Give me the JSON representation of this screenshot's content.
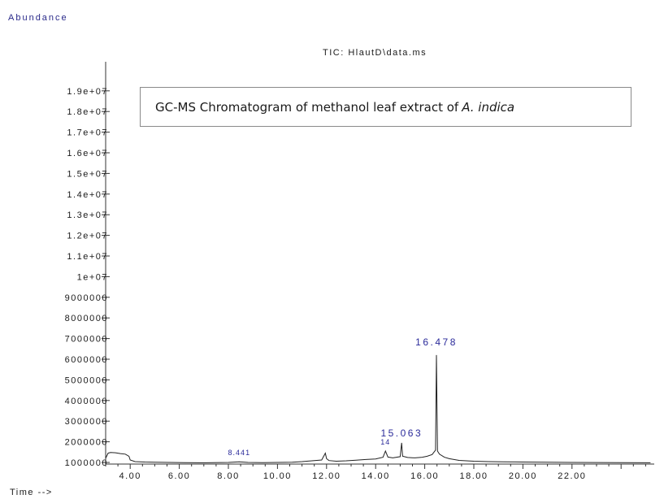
{
  "y_axis_label": "Abundance",
  "x_axis_label": "Time -->",
  "plot_title": "TIC: HlautD\\data.ms",
  "annotation": {
    "text_prefix": "GC-MS Chromatogram of methanol leaf extract of",
    "text_species": "A. indica"
  },
  "chart_data": {
    "type": "line",
    "title": "TIC: HlautD\\data.ms",
    "xlabel": "Time -->",
    "ylabel": "Abundance",
    "xlim": [
      3.0,
      25.2
    ],
    "ylim": [
      0,
      19500000
    ],
    "y_ticks": [
      {
        "value": 1000000,
        "label": "1000000"
      },
      {
        "value": 2000000,
        "label": "2000000"
      },
      {
        "value": 3000000,
        "label": "3000000"
      },
      {
        "value": 4000000,
        "label": "4000000"
      },
      {
        "value": 5000000,
        "label": "5000000"
      },
      {
        "value": 6000000,
        "label": "6000000"
      },
      {
        "value": 7000000,
        "label": "7000000"
      },
      {
        "value": 8000000,
        "label": "8000000"
      },
      {
        "value": 9000000,
        "label": "9000000"
      },
      {
        "value": 10000000,
        "label": "1e+07"
      },
      {
        "value": 11000000,
        "label": "1.1e+07"
      },
      {
        "value": 12000000,
        "label": "1.2e+07"
      },
      {
        "value": 13000000,
        "label": "1.3e+07"
      },
      {
        "value": 14000000,
        "label": "1.4e+07"
      },
      {
        "value": 15000000,
        "label": "1.5e+07"
      },
      {
        "value": 16000000,
        "label": "1.6e+07"
      },
      {
        "value": 17000000,
        "label": "1.7e+07"
      },
      {
        "value": 18000000,
        "label": "1.8e+07"
      },
      {
        "value": 19000000,
        "label": "1.9e+07"
      }
    ],
    "x_ticks": [
      {
        "value": 4,
        "label": "4.00"
      },
      {
        "value": 6,
        "label": "6.00"
      },
      {
        "value": 8,
        "label": "8.00"
      },
      {
        "value": 10,
        "label": "10.00"
      },
      {
        "value": 12,
        "label": "12.00"
      },
      {
        "value": 14,
        "label": "14.00"
      },
      {
        "value": 16,
        "label": "16.00"
      },
      {
        "value": 18,
        "label": "18.00"
      },
      {
        "value": 20,
        "label": "20.00"
      },
      {
        "value": 22,
        "label": "22.00"
      }
    ],
    "series": [
      {
        "x": [
          3.0,
          3.1,
          3.2,
          3.4,
          3.6,
          3.8,
          3.95,
          4.0,
          4.2,
          4.6,
          5.0,
          5.6,
          6.2,
          6.8,
          7.4,
          8.0,
          8.44,
          8.8,
          9.4,
          10.0,
          10.6,
          11.0,
          11.4,
          11.8,
          11.95,
          12.0,
          12.1,
          12.4,
          12.8,
          13.2,
          13.6,
          14.0,
          14.3,
          14.4,
          14.5,
          14.7,
          15.0,
          15.06,
          15.1,
          15.3,
          15.6,
          15.9,
          16.1,
          16.3,
          16.44,
          16.478,
          16.52,
          16.6,
          16.8,
          17.0,
          17.4,
          18.0,
          18.6,
          19.2,
          20.0,
          21.0,
          22.0,
          23.0,
          24.0,
          25.2
        ],
        "y": [
          1200000,
          1450000,
          1480000,
          1470000,
          1430000,
          1400000,
          1300000,
          1120000,
          1040000,
          1020000,
          1010000,
          1000000,
          990000,
          985000,
          990000,
          1000000,
          1030000,
          1000000,
          990000,
          1000000,
          1010000,
          1040000,
          1080000,
          1120000,
          1450000,
          1180000,
          1090000,
          1060000,
          1080000,
          1110000,
          1140000,
          1170000,
          1250000,
          1550000,
          1260000,
          1220000,
          1280000,
          1950000,
          1300000,
          1240000,
          1220000,
          1250000,
          1300000,
          1380000,
          1600000,
          6200000,
          1550000,
          1400000,
          1250000,
          1180000,
          1100000,
          1060000,
          1040000,
          1030000,
          1020000,
          1010000,
          1000000,
          995000,
          990000,
          985000
        ]
      }
    ],
    "peak_labels": [
      {
        "x": 16.478,
        "y": 6200000,
        "label": "16.478"
      },
      {
        "x": 15.063,
        "y": 1950000,
        "label": "15.063"
      },
      {
        "x": 8.441,
        "y": 1030000,
        "label": "8.441"
      },
      {
        "x": 14.4,
        "y": 1550000,
        "label": "14"
      }
    ]
  }
}
